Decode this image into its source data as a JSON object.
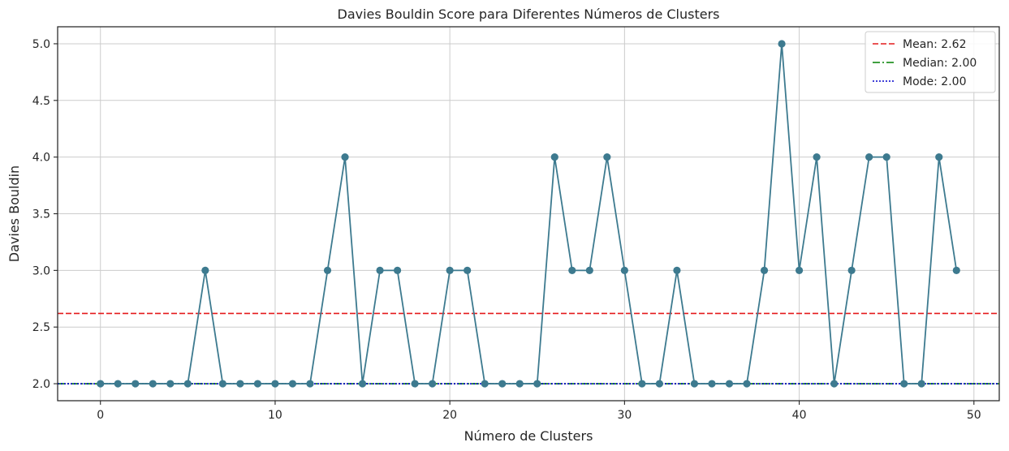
{
  "chart_data": {
    "type": "line",
    "title": "Davies Bouldin Score para Diferentes Números de Clusters",
    "xlabel": "Número de Clusters",
    "ylabel": "Davies Bouldin",
    "xlim": [
      -2.45,
      51.45
    ],
    "ylim": [
      1.85,
      5.15
    ],
    "xticks": [
      0,
      10,
      20,
      30,
      40,
      50
    ],
    "yticks": [
      2.0,
      2.5,
      3.0,
      3.5,
      4.0,
      4.5,
      5.0
    ],
    "grid": true,
    "legend_position": "top-right",
    "series": [
      {
        "color": "#3d7a8f",
        "marker": "circle",
        "x": [
          0,
          1,
          2,
          3,
          4,
          5,
          6,
          7,
          8,
          9,
          10,
          11,
          12,
          13,
          14,
          15,
          16,
          17,
          18,
          19,
          20,
          21,
          22,
          23,
          24,
          25,
          26,
          27,
          28,
          29,
          30,
          31,
          32,
          33,
          34,
          35,
          36,
          37,
          38,
          39,
          40,
          41,
          42,
          43,
          44,
          45,
          46,
          47,
          48,
          49
        ],
        "values": [
          2,
          2,
          2,
          2,
          2,
          2,
          3,
          2,
          2,
          2,
          2,
          2,
          2,
          3,
          4,
          2,
          3,
          3,
          2,
          2,
          3,
          3,
          2,
          2,
          2,
          2,
          4,
          3,
          3,
          4,
          3,
          2,
          2,
          3,
          2,
          2,
          2,
          2,
          3,
          5,
          3,
          4,
          2,
          3,
          4,
          4,
          2,
          2,
          4,
          3
        ]
      }
    ],
    "reference_lines": [
      {
        "label": "Mean: 2.62",
        "value": 2.62,
        "color": "#e41a1c",
        "style": "dashed"
      },
      {
        "label": "Median: 2.00",
        "value": 2.0,
        "color": "#008000",
        "style": "dashdot"
      },
      {
        "label": "Mode: 2.00",
        "value": 2.0,
        "color": "#0000cc",
        "style": "dotted"
      }
    ]
  }
}
